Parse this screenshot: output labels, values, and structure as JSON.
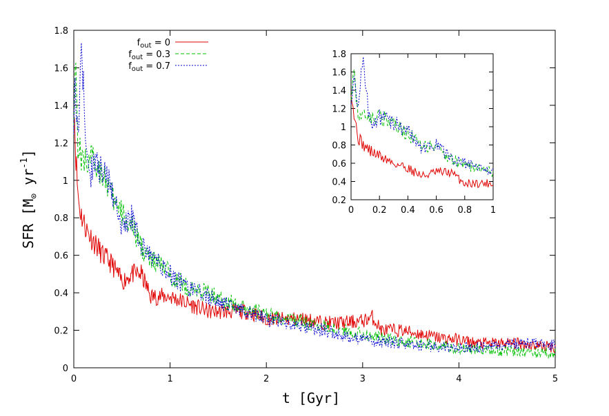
{
  "chart_data": {
    "type": "line",
    "title": "",
    "xlabel": "t  [Gyr]",
    "ylabel": "SFR [M",
    "ylabel_sub": "⊙",
    "ylabel_unit": " yr",
    "ylabel_sup": "-1",
    "ylabel_close": "]",
    "xlim": [
      0,
      5
    ],
    "ylim": [
      0,
      1.8
    ],
    "x_ticks": [
      "0",
      "1",
      "2",
      "3",
      "4",
      "5"
    ],
    "y_ticks": [
      "0",
      "0.2",
      "0.4",
      "0.6",
      "0.8",
      "1",
      "1.2",
      "1.4",
      "1.6",
      "1.8"
    ],
    "legend_position": "top-left",
    "series": [
      {
        "name": "f_out = 0",
        "label_main": "f",
        "label_sub": "out",
        "label_rest": " = 0",
        "color": "#e00000",
        "dash": "solid",
        "x": [
          0,
          0.02,
          0.04,
          0.06,
          0.1,
          0.15,
          0.2,
          0.3,
          0.4,
          0.5,
          0.6,
          0.7,
          0.8,
          1.0,
          1.2,
          1.4,
          1.6,
          1.8,
          2.0,
          2.2,
          2.4,
          2.6,
          2.8,
          3.0,
          3.1,
          3.2,
          3.4,
          3.6,
          3.8,
          4.0,
          4.2,
          4.4,
          4.6,
          4.8,
          5.0
        ],
        "y": [
          1.45,
          1.15,
          0.95,
          0.85,
          0.78,
          0.72,
          0.68,
          0.6,
          0.55,
          0.46,
          0.5,
          0.5,
          0.38,
          0.38,
          0.34,
          0.3,
          0.3,
          0.3,
          0.26,
          0.26,
          0.26,
          0.24,
          0.24,
          0.25,
          0.27,
          0.2,
          0.2,
          0.18,
          0.16,
          0.15,
          0.13,
          0.13,
          0.13,
          0.12,
          0.11
        ]
      },
      {
        "name": "f_out = 0.3",
        "label_main": "f",
        "label_sub": "out",
        "label_rest": " = 0.3",
        "color": "#00c000",
        "dash": "dashed",
        "x": [
          0,
          0.02,
          0.04,
          0.06,
          0.1,
          0.15,
          0.2,
          0.3,
          0.4,
          0.5,
          0.6,
          0.7,
          0.8,
          0.9,
          1.0,
          1.2,
          1.4,
          1.6,
          1.8,
          2.0,
          2.2,
          2.4,
          2.6,
          2.8,
          3.0,
          3.2,
          3.4,
          3.6,
          3.8,
          4.0,
          4.2,
          4.4,
          4.6,
          4.8,
          5.0
        ],
        "y": [
          1.4,
          1.65,
          1.2,
          1.15,
          1.1,
          1.12,
          1.1,
          1.05,
          0.9,
          0.82,
          0.75,
          0.65,
          0.57,
          0.55,
          0.5,
          0.42,
          0.4,
          0.35,
          0.32,
          0.28,
          0.26,
          0.24,
          0.22,
          0.2,
          0.18,
          0.16,
          0.14,
          0.13,
          0.12,
          0.1,
          0.1,
          0.09,
          0.09,
          0.08,
          0.08
        ]
      },
      {
        "name": "f_out = 0.7",
        "label_main": "f",
        "label_sub": "out",
        "label_rest": " = 0.7",
        "color": "#0000d0",
        "dash": "dotted",
        "x": [
          0,
          0.02,
          0.04,
          0.06,
          0.08,
          0.12,
          0.16,
          0.2,
          0.3,
          0.4,
          0.5,
          0.6,
          0.7,
          0.8,
          0.9,
          1.0,
          1.2,
          1.4,
          1.6,
          1.8,
          2.0,
          2.2,
          2.4,
          2.6,
          2.8,
          3.0,
          3.2,
          3.4,
          3.6,
          3.8,
          4.0,
          4.2,
          4.4,
          4.6,
          4.8,
          5.0
        ],
        "y": [
          1.35,
          1.5,
          1.2,
          1.45,
          1.76,
          1.2,
          1.0,
          1.1,
          1.05,
          0.95,
          0.75,
          0.8,
          0.65,
          0.6,
          0.55,
          0.5,
          0.42,
          0.38,
          0.33,
          0.3,
          0.26,
          0.24,
          0.22,
          0.2,
          0.17,
          0.15,
          0.14,
          0.13,
          0.12,
          0.11,
          0.11,
          0.11,
          0.12,
          0.13,
          0.13,
          0.12
        ]
      }
    ],
    "inset": {
      "xlim": [
        0,
        1
      ],
      "ylim": [
        0.2,
        1.8
      ],
      "x_ticks": [
        "0",
        "0.2",
        "0.4",
        "0.6",
        "0.8",
        "1"
      ],
      "y_ticks": [
        "0.2",
        "0.4",
        "0.6",
        "0.8",
        "1",
        "1.2",
        "1.4",
        "1.6",
        "1.8"
      ]
    }
  }
}
